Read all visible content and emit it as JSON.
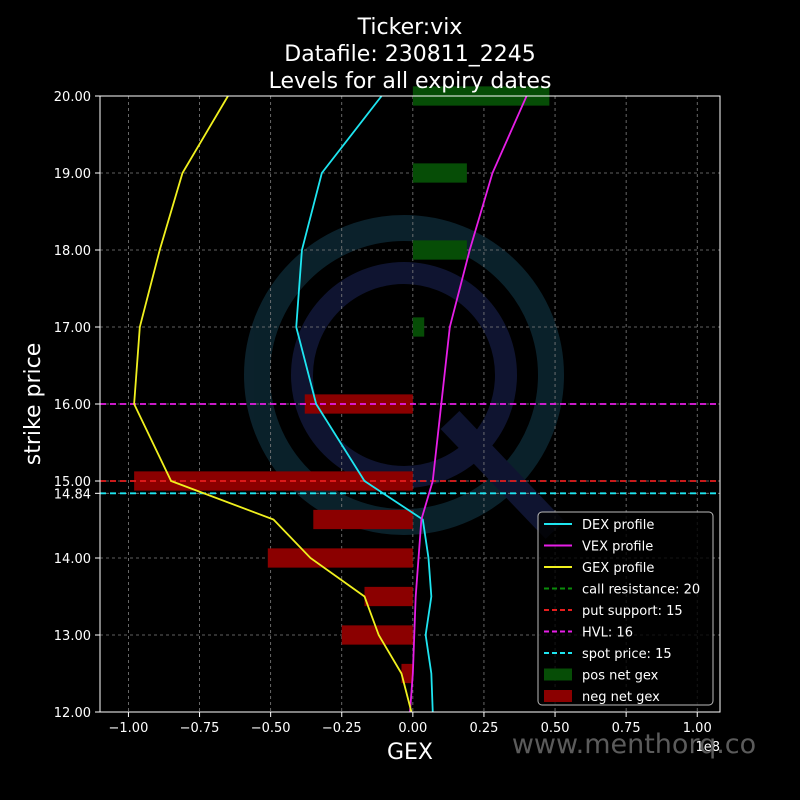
{
  "chart_data": {
    "type": "bar",
    "title_lines": [
      "Ticker:vix",
      "Datafile: 230811_2245",
      "Levels for all expiry dates"
    ],
    "xlabel": "GEX",
    "ylabel": "strike price",
    "x_offset_text": "1e8",
    "watermark": "www.menthorq.co",
    "xlim": [
      -1.1,
      1.08
    ],
    "ylim": [
      12.0,
      20.0
    ],
    "xticks": [
      -1.0,
      -0.75,
      -0.5,
      -0.25,
      0.0,
      0.25,
      0.5,
      0.75,
      1.0
    ],
    "xtick_labels": [
      "−1.00",
      "−0.75",
      "−0.50",
      "−0.25",
      "0.00",
      "0.25",
      "0.50",
      "0.75",
      "1.00"
    ],
    "yticks": [
      12,
      13,
      14,
      14.84,
      15,
      16,
      17,
      18,
      19,
      20
    ],
    "ytick_labels": [
      "12.00",
      "13.00",
      "14.00",
      "14.84",
      "15.00",
      "16.00",
      "17.00",
      "18.00",
      "19.00",
      "20.00"
    ],
    "grid": true,
    "legend_position": "bottom-right",
    "strikes": [
      12.5,
      13,
      13.5,
      14,
      14.5,
      15,
      16,
      17,
      18,
      19,
      20
    ],
    "net_gex": [
      -0.04,
      -0.25,
      -0.17,
      -0.51,
      -0.35,
      -0.98,
      -0.38,
      0.04,
      0.19,
      0.19,
      0.48
    ],
    "series": [
      {
        "name": "DEX profile",
        "color": "#1ee5f0",
        "kind": "line",
        "points": [
          [
            0.07,
            12
          ],
          [
            0.065,
            12.5
          ],
          [
            0.045,
            13
          ],
          [
            0.065,
            13.5
          ],
          [
            0.055,
            14
          ],
          [
            0.035,
            14.5
          ],
          [
            -0.17,
            15
          ],
          [
            -0.34,
            16
          ],
          [
            -0.41,
            17
          ],
          [
            -0.39,
            18
          ],
          [
            -0.32,
            19
          ],
          [
            -0.11,
            20
          ]
        ]
      },
      {
        "name": "VEX profile",
        "color": "#e61ee6",
        "kind": "line",
        "points": [
          [
            -0.01,
            12
          ],
          [
            0,
            12.5
          ],
          [
            0.005,
            13
          ],
          [
            0.01,
            13.5
          ],
          [
            0.02,
            14
          ],
          [
            0.03,
            14.5
          ],
          [
            0.07,
            15
          ],
          [
            0.1,
            16
          ],
          [
            0.13,
            17
          ],
          [
            0.2,
            18
          ],
          [
            0.28,
            19
          ],
          [
            0.4,
            20
          ]
        ]
      },
      {
        "name": "GEX profile",
        "color": "#f0f01e",
        "kind": "line",
        "points": [
          [
            -0.005,
            12
          ],
          [
            -0.04,
            12.5
          ],
          [
            -0.12,
            13
          ],
          [
            -0.17,
            13.5
          ],
          [
            -0.36,
            14
          ],
          [
            -0.49,
            14.5
          ],
          [
            -0.85,
            15
          ],
          [
            -0.98,
            16
          ],
          [
            -0.96,
            17
          ],
          [
            -0.89,
            18
          ],
          [
            -0.81,
            19
          ],
          [
            -0.65,
            20
          ]
        ]
      }
    ],
    "levels": [
      {
        "name": "call resistance: 20",
        "value": 20,
        "color": "#0a8c0a",
        "visible": false
      },
      {
        "name": "put support: 15",
        "value": 15,
        "color": "#e61e1e",
        "visible": true
      },
      {
        "name": "HVL: 16",
        "value": 16,
        "color": "#e61ee6",
        "visible": true
      },
      {
        "name": "spot price: 15",
        "value": 14.84,
        "color": "#1ee5f0",
        "visible": true
      }
    ],
    "bars_legend": [
      {
        "name": "pos net gex",
        "color": "#064d06"
      },
      {
        "name": "neg net gex",
        "color": "#8b0000"
      }
    ],
    "colors": {
      "background": "#000000",
      "axes": "#ffffff",
      "grid": "#808080",
      "pos_bar": "#064d06",
      "neg_bar": "#8b0000"
    }
  }
}
